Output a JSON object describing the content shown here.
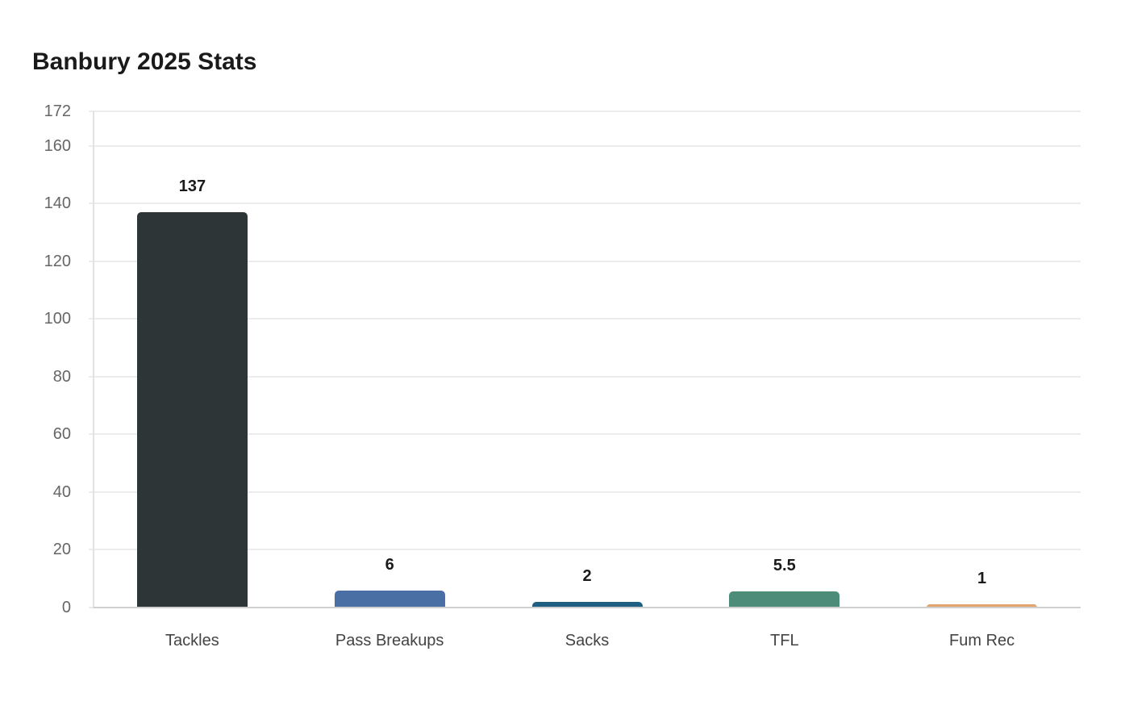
{
  "chart_data": {
    "type": "bar",
    "title": "Banbury 2025 Stats",
    "xlabel": "",
    "ylabel": "",
    "categories": [
      "Tackles",
      "Pass Breakups",
      "Sacks",
      "TFL",
      "Fum Rec"
    ],
    "values": [
      137,
      6,
      2,
      5.5,
      1
    ],
    "value_labels": [
      "137",
      "6",
      "2",
      "5.5",
      "1"
    ],
    "colors": [
      "#2e3537",
      "#4a6fa5",
      "#1f5f82",
      "#4e8c7a",
      "#e0a46c"
    ],
    "ylim": [
      0,
      172
    ],
    "yticks": [
      0,
      20,
      40,
      60,
      80,
      100,
      120,
      140,
      160,
      172
    ],
    "grid": true,
    "legend": null
  }
}
